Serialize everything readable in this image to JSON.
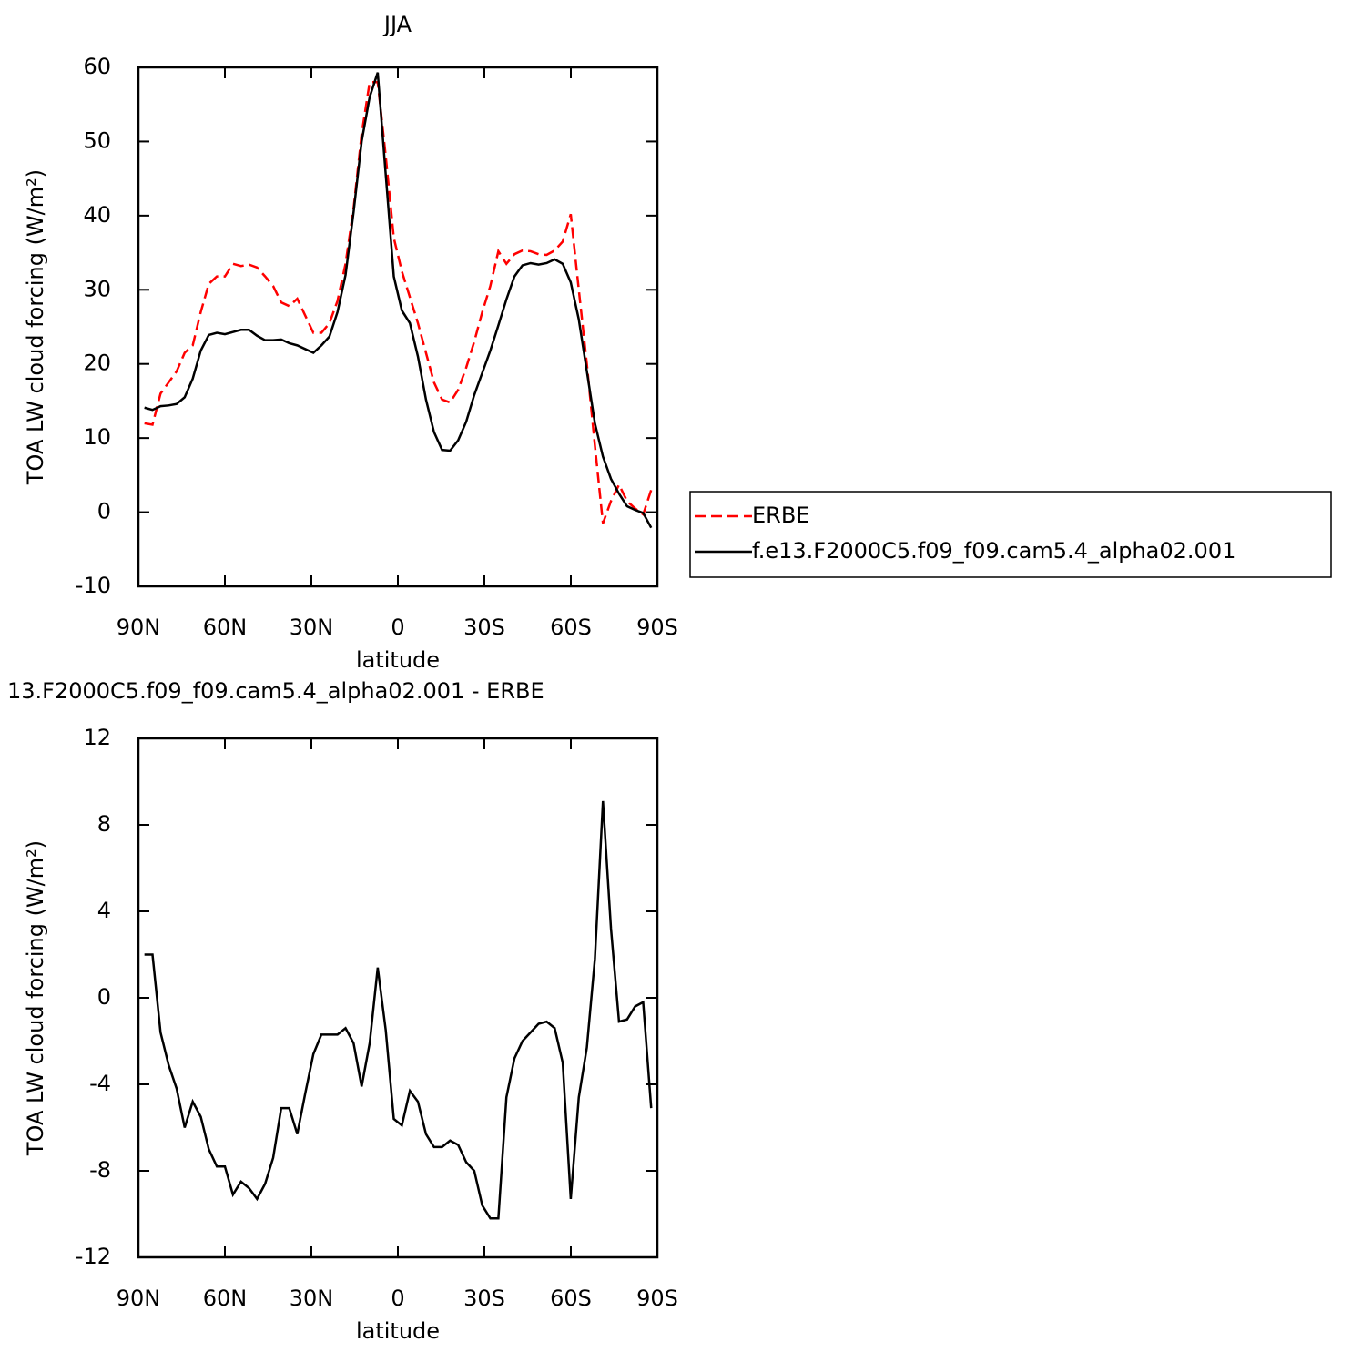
{
  "chart_data": [
    {
      "type": "line",
      "title": "JJA",
      "xlabel": "latitude",
      "ylabel": "TOA LW cloud forcing (W/m²)",
      "x": [
        87.9,
        85.11,
        82.32,
        79.53,
        76.74,
        73.95,
        71.16,
        68.37,
        65.58,
        62.79,
        60.0,
        57.21,
        54.42,
        51.63,
        48.84,
        46.05,
        43.26,
        40.47,
        37.68,
        34.89,
        32.1,
        29.31,
        26.52,
        23.73,
        20.94,
        18.15,
        15.36,
        12.57,
        9.78,
        6.99,
        4.2,
        1.41,
        -1.38,
        -4.17,
        -6.96,
        -9.75,
        -12.54,
        -15.33,
        -18.12,
        -20.91,
        -23.7,
        -26.49,
        -29.28,
        -32.07,
        -34.86,
        -37.65,
        -40.44,
        -43.23,
        -46.02,
        -48.81,
        -51.6,
        -54.39,
        -57.18,
        -59.97,
        -62.76,
        -65.55,
        -68.34,
        -71.13,
        -73.92,
        -76.71,
        -79.5,
        -82.29,
        -85.08,
        -87.87
      ],
      "xlim": [
        90,
        -90
      ],
      "xticks": [
        {
          "value": 90,
          "label": "90N"
        },
        {
          "value": 60,
          "label": "60N"
        },
        {
          "value": 30,
          "label": "30N"
        },
        0,
        {
          "value": -30,
          "label": "30S"
        },
        {
          "value": -60,
          "label": "60S"
        },
        {
          "value": -90,
          "label": "90S"
        }
      ],
      "ylim": [
        -10,
        60
      ],
      "yticks": [
        -10,
        0,
        10,
        20,
        30,
        40,
        50,
        60
      ],
      "legend": "right",
      "series": [
        {
          "name": "ERBE",
          "color": "#ff0000",
          "dashed": true,
          "values": [
            12.0,
            11.8,
            16.0,
            17.5,
            19.0,
            21.5,
            22.5,
            27.0,
            30.8,
            31.8,
            31.8,
            33.5,
            33.2,
            33.4,
            33.0,
            31.8,
            30.5,
            28.3,
            27.8,
            28.8,
            26.5,
            24.2,
            24.2,
            25.5,
            28.5,
            33.5,
            41.0,
            51.0,
            58.0,
            58.0,
            48.0,
            37.0,
            32.5,
            29.0,
            25.5,
            21.5,
            17.5,
            15.2,
            14.8,
            16.5,
            19.5,
            23.0,
            27.0,
            30.5,
            35.2,
            33.5,
            34.8,
            35.3,
            35.2,
            34.8,
            34.7,
            35.3,
            36.5,
            40.2,
            30.0,
            20.0,
            9.0,
            -1.5,
            1.5,
            3.7,
            1.5,
            0.5,
            -0.3,
            3.0
          ]
        },
        {
          "name": "f.e13.F2000C5.f09_f09.cam5.4_alpha02.001",
          "color": "#000000",
          "dashed": false,
          "values": [
            14.1,
            13.8,
            14.3,
            14.4,
            14.6,
            15.5,
            18.0,
            21.8,
            23.9,
            24.2,
            24.0,
            24.3,
            24.6,
            24.6,
            23.8,
            23.2,
            23.2,
            23.3,
            22.8,
            22.5,
            22.0,
            21.5,
            22.5,
            23.7,
            27.0,
            32.0,
            40.5,
            50.0,
            56.0,
            59.3,
            45.5,
            31.8,
            27.2,
            25.5,
            21.0,
            15.2,
            10.8,
            8.4,
            8.3,
            9.7,
            12.2,
            15.8,
            18.8,
            21.8,
            25.2,
            28.7,
            31.8,
            33.3,
            33.6,
            33.4,
            33.6,
            34.1,
            33.5,
            31.0,
            26.0,
            19.0,
            12.0,
            7.5,
            4.5,
            2.5,
            0.8,
            0.3,
            -0.1,
            -2.1
          ]
        }
      ]
    },
    {
      "type": "line",
      "title": "13.F2000C5.f09_f09.cam5.4_alpha02.001 - ERBE",
      "xlabel": "latitude",
      "ylabel": "TOA LW cloud forcing (W/m²)",
      "x": [
        87.9,
        85.11,
        82.32,
        79.53,
        76.74,
        73.95,
        71.16,
        68.37,
        65.58,
        62.79,
        60.0,
        57.21,
        54.42,
        51.63,
        48.84,
        46.05,
        43.26,
        40.47,
        37.68,
        34.89,
        32.1,
        29.31,
        26.52,
        23.73,
        20.94,
        18.15,
        15.36,
        12.57,
        9.78,
        6.99,
        4.2,
        1.41,
        -1.38,
        -4.17,
        -6.96,
        -9.75,
        -12.54,
        -15.33,
        -18.12,
        -20.91,
        -23.7,
        -26.49,
        -29.28,
        -32.07,
        -34.86,
        -37.65,
        -40.44,
        -43.23,
        -46.02,
        -48.81,
        -51.6,
        -54.39,
        -57.18,
        -59.97,
        -62.76,
        -65.55,
        -68.34,
        -71.13,
        -73.92,
        -76.71,
        -79.5,
        -82.29,
        -85.08,
        -87.87
      ],
      "xlim": [
        90,
        -90
      ],
      "xticks": [
        {
          "value": 90,
          "label": "90N"
        },
        {
          "value": 60,
          "label": "60N"
        },
        {
          "value": 30,
          "label": "30N"
        },
        0,
        {
          "value": -30,
          "label": "30S"
        },
        {
          "value": -60,
          "label": "60S"
        },
        {
          "value": -90,
          "label": "90S"
        }
      ],
      "ylim": [
        -12,
        12
      ],
      "yticks": [
        -12,
        -8,
        -4,
        0,
        4,
        8,
        12
      ],
      "series": [
        {
          "color": "#000000",
          "dashed": false,
          "values": [
            2.0,
            2.0,
            -1.6,
            -3.1,
            -4.2,
            -6.0,
            -4.8,
            -5.5,
            -7.0,
            -7.8,
            -7.8,
            -9.1,
            -8.5,
            -8.8,
            -9.3,
            -8.6,
            -7.4,
            -5.1,
            -5.1,
            -6.3,
            -4.4,
            -2.6,
            -1.7,
            -1.7,
            -1.7,
            -1.4,
            -2.1,
            -4.1,
            -2.1,
            1.4,
            -1.5,
            -5.6,
            -5.9,
            -4.3,
            -4.8,
            -6.3,
            -6.9,
            -6.9,
            -6.6,
            -6.8,
            -7.6,
            -8.0,
            -9.6,
            -10.2,
            -10.2,
            -4.6,
            -2.8,
            -2.0,
            -1.6,
            -1.2,
            -1.1,
            -1.4,
            -3.0,
            -9.3,
            -4.6,
            -2.3,
            1.8,
            9.1,
            3.2,
            -1.1,
            -1.0,
            -0.4,
            -0.2,
            -5.1
          ]
        }
      ]
    }
  ]
}
